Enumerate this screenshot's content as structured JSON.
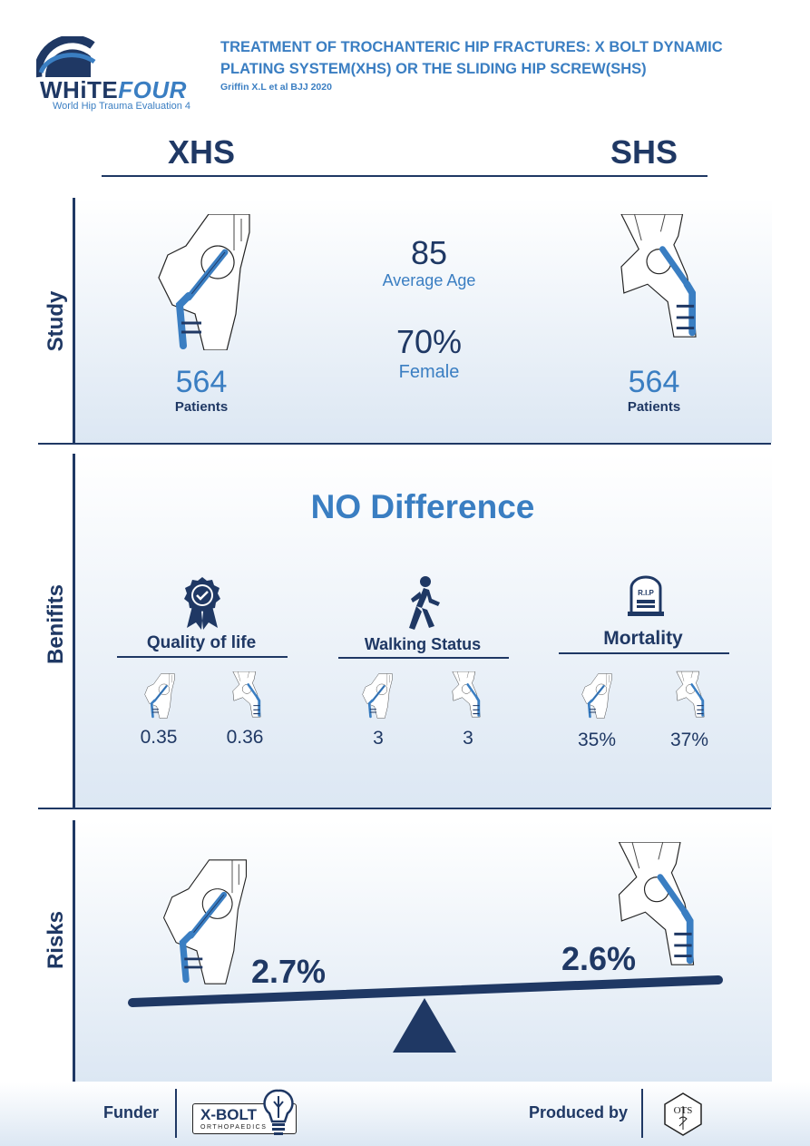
{
  "header": {
    "logo_word_a": "WHiTE",
    "logo_word_b": "FOUR",
    "logo_subtitle": "World Hip Trauma Evaluation 4",
    "title_line1": "TREATMENT OF TROCHANTERIC HIP FRACTURES: X BOLT DYNAMIC",
    "title_line2": "PLATING SYSTEM(XHS) OR THE SLIDING HIP SCREW(SHS)",
    "citation": "Griffin X.L et al BJJ 2020"
  },
  "columns": {
    "left": "XHS",
    "right": "SHS"
  },
  "study": {
    "label": "Study",
    "xhs_patients": "564",
    "shs_patients": "564",
    "patients_label": "Patients",
    "average_age": "85",
    "average_age_label": "Average Age",
    "female": "70%",
    "female_label": "Female"
  },
  "benefits": {
    "label": "Benifits",
    "headline": "NO Difference",
    "items": [
      {
        "title": "Quality of life",
        "icon": "award-ribbon-icon",
        "xhs": "0.35",
        "shs": "0.36"
      },
      {
        "title": "Walking Status",
        "icon": "walking-person-icon",
        "xhs": "3",
        "shs": "3"
      },
      {
        "title": "Mortality",
        "icon": "tombstone-icon",
        "xhs": "35%",
        "shs": "37%",
        "icon_text": "R.I.P"
      }
    ]
  },
  "risks": {
    "label": "Risks",
    "xhs": "2.7%",
    "shs": "2.6%"
  },
  "footer": {
    "funder_label": "Funder",
    "funder_logo_text": "X-BOLT",
    "funder_logo_sub": "ORTHOPAEDICS",
    "produced_label": "Produced by",
    "producer_logo_text": "OTS"
  },
  "colors": {
    "navy": "#1f3864",
    "blue": "#3a7ec2",
    "panel_fade": "#dce7f3"
  }
}
